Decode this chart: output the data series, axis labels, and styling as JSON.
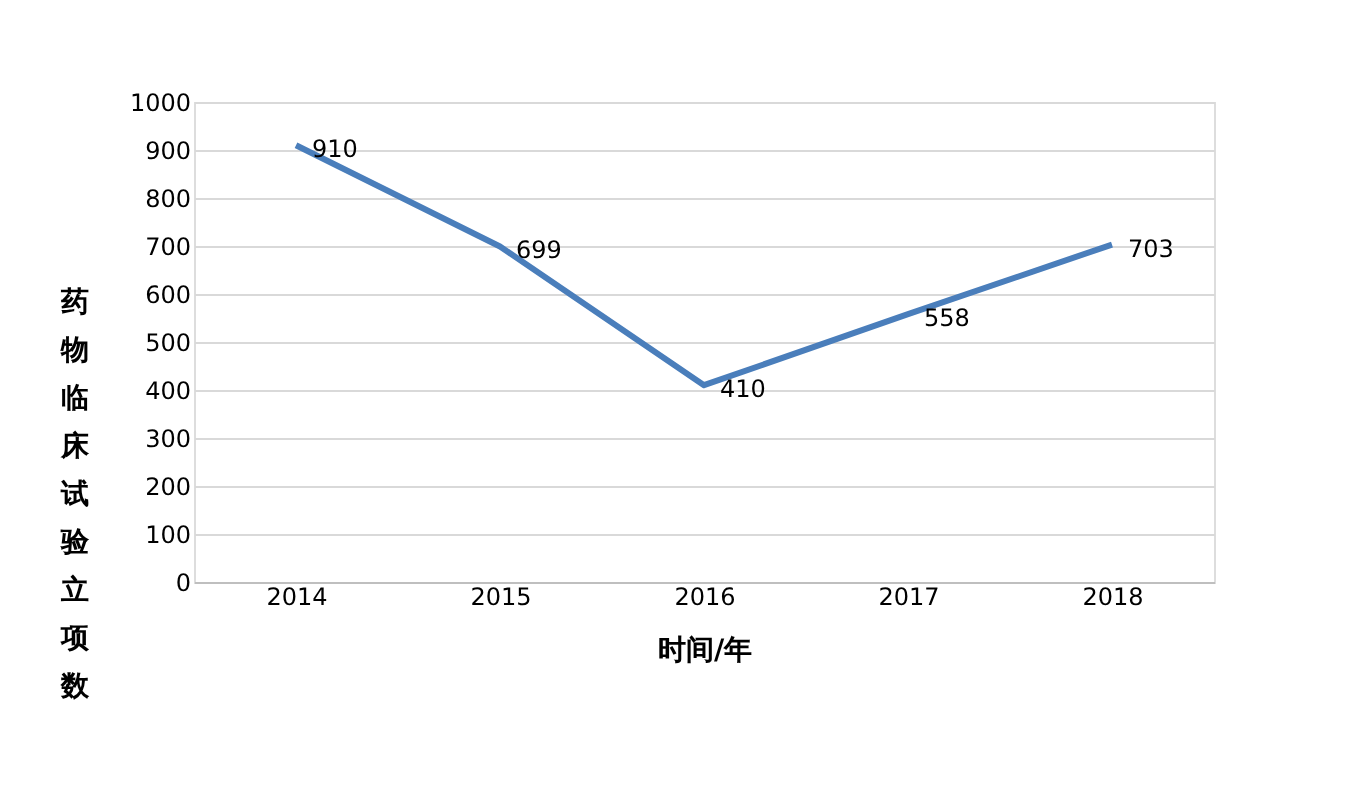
{
  "chart_data": {
    "type": "line",
    "xlabel": "时间/年",
    "ylabel": "药物临床试验立项数",
    "categories": [
      "2014",
      "2015",
      "2016",
      "2017",
      "2018"
    ],
    "series": [
      {
        "color": "#4a7ebb",
        "values": [
          910,
          699,
          410,
          558,
          703
        ]
      }
    ],
    "ylim": [
      0,
      1000
    ],
    "yticks": [
      0,
      100,
      200,
      300,
      400,
      500,
      600,
      700,
      800,
      900,
      1000
    ],
    "grid": "y",
    "data_labels": true,
    "marker": "none",
    "line_style": "solid"
  }
}
